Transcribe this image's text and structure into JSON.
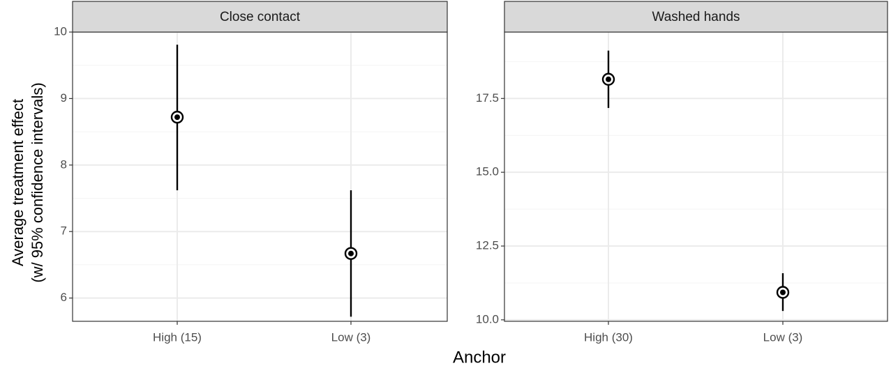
{
  "figure": {
    "ylabel_line1": "Average treatment effect",
    "ylabel_line2": "(w/ 95% confidence intervals)",
    "xlabel": "Anchor"
  },
  "colors": {
    "strip_fill": "#d9d9d9",
    "strip_border": "#333333",
    "panel_border": "#333333",
    "grid_major": "#ebebeb",
    "grid_minor": "#f4f4f4",
    "mark": "#000000",
    "tick_label": "#4d4d4d",
    "axis_title": "#000000"
  },
  "chart_data": [
    {
      "type": "scatter",
      "title": "Close contact",
      "categories": [
        "High (15)",
        "Low (3)"
      ],
      "points": [
        {
          "x": "High (15)",
          "y": 8.72,
          "lower": 7.62,
          "upper": 9.81
        },
        {
          "x": "Low (3)",
          "y": 6.67,
          "lower": 5.72,
          "upper": 7.62
        }
      ],
      "yticks": [
        6,
        7,
        8,
        9,
        10
      ],
      "ytick_labels": [
        "6",
        "7",
        "8",
        "9",
        "10"
      ],
      "ylim": [
        5.65,
        10.0
      ],
      "xlabel": "Anchor",
      "ylabel": "Average treatment effect (w/ 95% confidence intervals)",
      "grid": true
    },
    {
      "type": "scatter",
      "title": "Washed hands",
      "categories": [
        "High (30)",
        "Low (3)"
      ],
      "points": [
        {
          "x": "High (30)",
          "y": 18.15,
          "lower": 17.18,
          "upper": 19.12
        },
        {
          "x": "Low (3)",
          "y": 10.93,
          "lower": 10.3,
          "upper": 11.58
        }
      ],
      "yticks": [
        10.0,
        12.5,
        15.0,
        17.5
      ],
      "ytick_labels": [
        "10.0",
        "12.5",
        "15.0",
        "17.5"
      ],
      "ylim": [
        9.95,
        19.75
      ],
      "xlabel": "Anchor",
      "ylabel": "Average treatment effect (w/ 95% confidence intervals)",
      "grid": true
    }
  ]
}
